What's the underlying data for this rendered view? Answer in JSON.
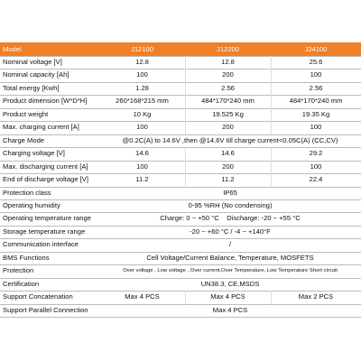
{
  "table": {
    "header": [
      "Model",
      "J12100",
      "J12200",
      "J24100"
    ],
    "rows": [
      [
        "Nominal voltage [V]",
        "12.8",
        "12.8",
        "25.6"
      ],
      [
        "Nominal capacity [Ah]",
        "100",
        "200",
        "100"
      ],
      [
        "Total energy [Kwh]",
        "1.28",
        "2.56",
        "2.56"
      ],
      [
        "Product dimension [W*D*H]",
        "260*168*215 mm",
        "484*170*240 mm",
        "484*170*240 mm"
      ],
      [
        "Product weight",
        "10 Kg",
        "19.525 Kg",
        "19.35 Kg"
      ],
      [
        "Max. charging current [A]",
        "100",
        "200",
        "100"
      ],
      [
        "Charge Mode",
        "@0.2C(A) to 14.6V ,then @14.6V till charge current<0.05C(A) (CC,CV)"
      ],
      [
        "Charging voltage [V]",
        "14.6",
        "14.6",
        "29.2"
      ],
      [
        "Max. discharging current [A]",
        "100",
        "200",
        "100"
      ],
      [
        "End of discharge voltage [V]",
        "11.2",
        "11.2",
        "22.4"
      ],
      [
        "Protection class",
        "IP65"
      ],
      [
        "Operating humidity",
        "0-95 %RH (No condensing)"
      ],
      [
        "Operating temperature range",
        "Charge: 0 ~ +50 °C    Discharge: -20 ~ +55 °C"
      ],
      [
        "Storage temperature range",
        "-20 ~ +60 °C / -4 ~ +140°F"
      ],
      [
        "Communication interface",
        "/"
      ],
      [
        "BMS Functions",
        "Cell Voltage/Current Balance, Temperature, MOSFETS"
      ],
      [
        "Protection",
        "Over voltage , Low voltage , Over current,Over Temperature, Low Temperature Short circuit"
      ],
      [
        "Certification",
        "UN38.3, CE,MSDS"
      ],
      [
        "Support Concatenation",
        "Max 4 PCS",
        "Max 4 PCS",
        "Max 2 PCS"
      ],
      [
        "Support Parallel Connection",
        "Max 4 PCS"
      ]
    ]
  }
}
